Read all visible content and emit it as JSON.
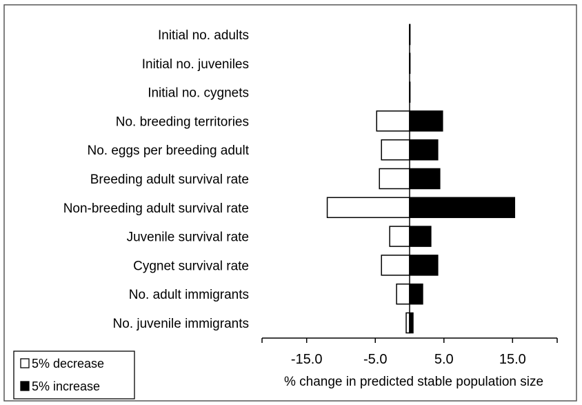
{
  "chart_data": {
    "type": "bar",
    "orientation": "horizontal",
    "categories": [
      "Initial no. adults",
      "Initial no. juveniles",
      "Initial no. cygnets",
      "No. breeding territories",
      "No. eggs per breeding adult",
      "Breeding adult survival rate",
      "Non-breeding adult survival rate",
      "Juvenile survival rate",
      "Cygnet survival rate",
      "No. adult immigrants",
      "No. juvenile immigrants"
    ],
    "series": [
      {
        "name": "5% decrease",
        "color": "#ffffff",
        "values": [
          0,
          0,
          0,
          -4.8,
          -4.1,
          -4.4,
          -12.0,
          -2.9,
          -4.1,
          -1.9,
          -0.5
        ]
      },
      {
        "name": "5% increase",
        "color": "#000000",
        "values": [
          0,
          0,
          0,
          4.8,
          4.1,
          4.4,
          15.3,
          3.1,
          4.1,
          1.9,
          0.5
        ]
      }
    ],
    "xlabel": "% change in predicted stable population size",
    "xlim": [
      -21.5,
      21.5
    ],
    "xticks": [
      -15.0,
      -5.0,
      5.0,
      15.0
    ],
    "xtick_labels": [
      "-15.0",
      "-5.0",
      "5.0",
      "15.0"
    ],
    "legend_position": "bottom-left",
    "grid": false
  }
}
